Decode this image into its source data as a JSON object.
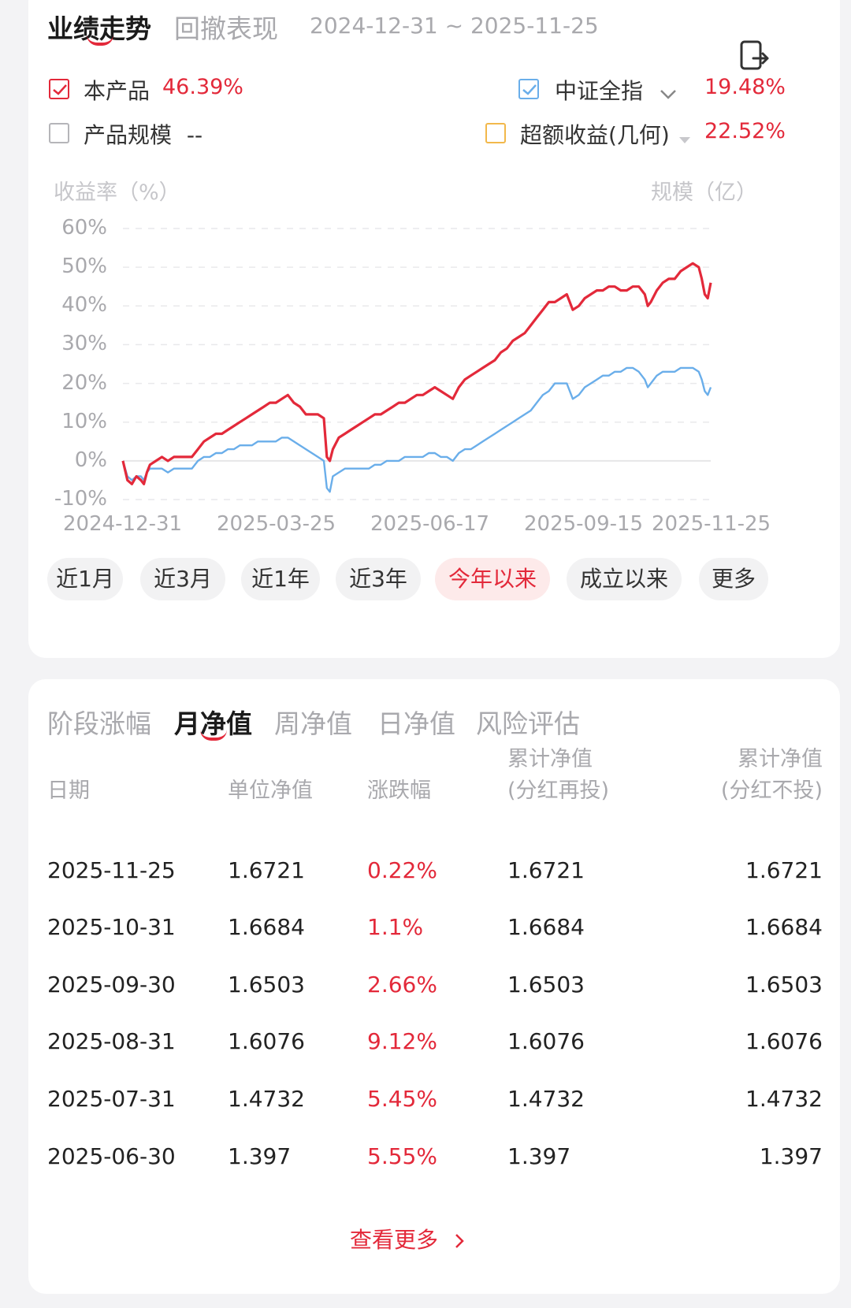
{
  "header": {
    "tabs": [
      {
        "label": "业绩走势",
        "active": true
      },
      {
        "label": "回撤表现",
        "active": false
      }
    ],
    "date_range": "2024-12-31 ~ 2025-11-25",
    "share_icon": "share-export-icon"
  },
  "legend": {
    "product": {
      "label": "本产品",
      "value": "46.39%",
      "checked": true
    },
    "benchmark": {
      "label": "中证全指",
      "value": "19.48%",
      "checked": true
    },
    "scale": {
      "label": "产品规模",
      "value": "--",
      "checked": false
    },
    "excess": {
      "label": "超额收益(几何)",
      "value": "22.52%",
      "checked": false
    }
  },
  "chart_data": {
    "type": "line",
    "ylabel": "收益率（%）",
    "y2label": "规模（亿）",
    "ylim": [
      -10,
      60
    ],
    "yticks": [
      "60%",
      "50%",
      "40%",
      "30%",
      "20%",
      "10%",
      "0%",
      "-10%"
    ],
    "xticks": [
      "2024-12-31",
      "2025-03-25",
      "2025-06-17",
      "2025-09-15",
      "2025-11-25"
    ],
    "grid": true,
    "series": [
      {
        "name": "本产品",
        "color": "#e3293a",
        "points": [
          [
            0,
            0
          ],
          [
            3,
            -5
          ],
          [
            6,
            -6
          ],
          [
            9,
            -4
          ],
          [
            12,
            -5
          ],
          [
            14,
            -6
          ],
          [
            16,
            -3
          ],
          [
            18,
            -1
          ],
          [
            22,
            0
          ],
          [
            26,
            1
          ],
          [
            30,
            0
          ],
          [
            34,
            1
          ],
          [
            40,
            1
          ],
          [
            46,
            1
          ],
          [
            50,
            3
          ],
          [
            54,
            5
          ],
          [
            58,
            6
          ],
          [
            62,
            7
          ],
          [
            66,
            7
          ],
          [
            70,
            8
          ],
          [
            74,
            9
          ],
          [
            78,
            10
          ],
          [
            82,
            11
          ],
          [
            86,
            12
          ],
          [
            90,
            13
          ],
          [
            94,
            14
          ],
          [
            98,
            15
          ],
          [
            102,
            15
          ],
          [
            106,
            16
          ],
          [
            110,
            17
          ],
          [
            114,
            15
          ],
          [
            118,
            14
          ],
          [
            122,
            12
          ],
          [
            126,
            12
          ],
          [
            130,
            12
          ],
          [
            134,
            11
          ],
          [
            136,
            1
          ],
          [
            138,
            0
          ],
          [
            140,
            3
          ],
          [
            144,
            6
          ],
          [
            148,
            7
          ],
          [
            152,
            8
          ],
          [
            156,
            9
          ],
          [
            160,
            10
          ],
          [
            164,
            11
          ],
          [
            168,
            12
          ],
          [
            172,
            12
          ],
          [
            176,
            13
          ],
          [
            180,
            14
          ],
          [
            184,
            15
          ],
          [
            188,
            15
          ],
          [
            192,
            16
          ],
          [
            196,
            17
          ],
          [
            200,
            17
          ],
          [
            204,
            18
          ],
          [
            208,
            19
          ],
          [
            212,
            18
          ],
          [
            216,
            17
          ],
          [
            220,
            16
          ],
          [
            224,
            19
          ],
          [
            228,
            21
          ],
          [
            232,
            22
          ],
          [
            236,
            23
          ],
          [
            240,
            24
          ],
          [
            244,
            25
          ],
          [
            248,
            26
          ],
          [
            252,
            28
          ],
          [
            256,
            29
          ],
          [
            260,
            31
          ],
          [
            264,
            32
          ],
          [
            268,
            33
          ],
          [
            272,
            35
          ],
          [
            276,
            37
          ],
          [
            280,
            39
          ],
          [
            284,
            41
          ],
          [
            288,
            41
          ],
          [
            292,
            42
          ],
          [
            296,
            43
          ],
          [
            300,
            39
          ],
          [
            304,
            40
          ],
          [
            308,
            42
          ],
          [
            312,
            43
          ],
          [
            316,
            44
          ],
          [
            320,
            44
          ],
          [
            324,
            45
          ],
          [
            328,
            45
          ],
          [
            332,
            44
          ],
          [
            336,
            44
          ],
          [
            340,
            45
          ],
          [
            344,
            45
          ],
          [
            348,
            43
          ],
          [
            350,
            40
          ],
          [
            352,
            41
          ],
          [
            356,
            44
          ],
          [
            360,
            46
          ],
          [
            364,
            47
          ],
          [
            368,
            47
          ],
          [
            372,
            49
          ],
          [
            376,
            50
          ],
          [
            380,
            51
          ],
          [
            384,
            50
          ],
          [
            386,
            47
          ],
          [
            388,
            43
          ],
          [
            390,
            42
          ],
          [
            392,
            46
          ]
        ]
      },
      {
        "name": "中证全指",
        "color": "#6aaeea",
        "points": [
          [
            0,
            0
          ],
          [
            3,
            -4
          ],
          [
            6,
            -5
          ],
          [
            9,
            -4
          ],
          [
            12,
            -4
          ],
          [
            14,
            -5
          ],
          [
            16,
            -3
          ],
          [
            18,
            -2
          ],
          [
            22,
            -2
          ],
          [
            26,
            -2
          ],
          [
            30,
            -3
          ],
          [
            34,
            -2
          ],
          [
            40,
            -2
          ],
          [
            46,
            -2
          ],
          [
            50,
            0
          ],
          [
            54,
            1
          ],
          [
            58,
            1
          ],
          [
            62,
            2
          ],
          [
            66,
            2
          ],
          [
            70,
            3
          ],
          [
            74,
            3
          ],
          [
            78,
            4
          ],
          [
            82,
            4
          ],
          [
            86,
            4
          ],
          [
            90,
            5
          ],
          [
            94,
            5
          ],
          [
            98,
            5
          ],
          [
            102,
            5
          ],
          [
            106,
            6
          ],
          [
            110,
            6
          ],
          [
            114,
            5
          ],
          [
            118,
            4
          ],
          [
            122,
            3
          ],
          [
            126,
            2
          ],
          [
            130,
            1
          ],
          [
            134,
            0
          ],
          [
            136,
            -7
          ],
          [
            138,
            -8
          ],
          [
            140,
            -4
          ],
          [
            144,
            -3
          ],
          [
            148,
            -2
          ],
          [
            152,
            -2
          ],
          [
            156,
            -2
          ],
          [
            160,
            -2
          ],
          [
            164,
            -2
          ],
          [
            168,
            -1
          ],
          [
            172,
            -1
          ],
          [
            176,
            0
          ],
          [
            180,
            0
          ],
          [
            184,
            0
          ],
          [
            188,
            1
          ],
          [
            192,
            1
          ],
          [
            196,
            1
          ],
          [
            200,
            1
          ],
          [
            204,
            2
          ],
          [
            208,
            2
          ],
          [
            212,
            1
          ],
          [
            216,
            1
          ],
          [
            220,
            0
          ],
          [
            224,
            2
          ],
          [
            228,
            3
          ],
          [
            232,
            3
          ],
          [
            236,
            4
          ],
          [
            240,
            5
          ],
          [
            244,
            6
          ],
          [
            248,
            7
          ],
          [
            252,
            8
          ],
          [
            256,
            9
          ],
          [
            260,
            10
          ],
          [
            264,
            11
          ],
          [
            268,
            12
          ],
          [
            272,
            13
          ],
          [
            276,
            15
          ],
          [
            280,
            17
          ],
          [
            284,
            18
          ],
          [
            288,
            20
          ],
          [
            292,
            20
          ],
          [
            296,
            20
          ],
          [
            300,
            16
          ],
          [
            304,
            17
          ],
          [
            308,
            19
          ],
          [
            312,
            20
          ],
          [
            316,
            21
          ],
          [
            320,
            22
          ],
          [
            324,
            22
          ],
          [
            328,
            23
          ],
          [
            332,
            23
          ],
          [
            336,
            24
          ],
          [
            340,
            24
          ],
          [
            344,
            23
          ],
          [
            348,
            21
          ],
          [
            350,
            19
          ],
          [
            352,
            20
          ],
          [
            356,
            22
          ],
          [
            360,
            23
          ],
          [
            364,
            23
          ],
          [
            368,
            23
          ],
          [
            372,
            24
          ],
          [
            376,
            24
          ],
          [
            380,
            24
          ],
          [
            384,
            23
          ],
          [
            386,
            21
          ],
          [
            388,
            18
          ],
          [
            390,
            17
          ],
          [
            392,
            19
          ]
        ]
      }
    ]
  },
  "periods": [
    {
      "label": "近1月",
      "active": false
    },
    {
      "label": "近3月",
      "active": false
    },
    {
      "label": "近1年",
      "active": false
    },
    {
      "label": "近3年",
      "active": false
    },
    {
      "label": "今年以来",
      "active": true
    },
    {
      "label": "成立以来",
      "active": false
    },
    {
      "label": "更多",
      "active": false
    }
  ],
  "nav_tabs": [
    {
      "label": "阶段涨幅",
      "active": false
    },
    {
      "label": "月净值",
      "active": true
    },
    {
      "label": "周净值",
      "active": false
    },
    {
      "label": "日净值",
      "active": false
    },
    {
      "label": "风险评估",
      "active": false
    }
  ],
  "table": {
    "headers": [
      {
        "line1": "日期",
        "line2": ""
      },
      {
        "line1": "单位净值",
        "line2": ""
      },
      {
        "line1": "涨跌幅",
        "line2": ""
      },
      {
        "line1": "累计净值",
        "line2": "(分红再投)"
      },
      {
        "line1": "累计净值",
        "line2": "(分红不投)"
      }
    ],
    "rows": [
      {
        "date": "2025-11-25",
        "unit": "1.6721",
        "change": "0.22%",
        "cum_reinvest": "1.6721",
        "cum_no_reinvest": "1.6721"
      },
      {
        "date": "2025-10-31",
        "unit": "1.6684",
        "change": "1.1%",
        "cum_reinvest": "1.6684",
        "cum_no_reinvest": "1.6684"
      },
      {
        "date": "2025-09-30",
        "unit": "1.6503",
        "change": "2.66%",
        "cum_reinvest": "1.6503",
        "cum_no_reinvest": "1.6503"
      },
      {
        "date": "2025-08-31",
        "unit": "1.6076",
        "change": "9.12%",
        "cum_reinvest": "1.6076",
        "cum_no_reinvest": "1.6076"
      },
      {
        "date": "2025-07-31",
        "unit": "1.4732",
        "change": "5.45%",
        "cum_reinvest": "1.4732",
        "cum_no_reinvest": "1.4732"
      },
      {
        "date": "2025-06-30",
        "unit": "1.397",
        "change": "5.55%",
        "cum_reinvest": "1.397",
        "cum_no_reinvest": "1.397"
      }
    ],
    "see_more": "查看更多",
    "see_more_icon": "chevron-right-icon"
  },
  "colors": {
    "accent_red": "#e3293a",
    "benchmark_blue": "#6aaeea",
    "excess_orange": "#f2b84b"
  }
}
